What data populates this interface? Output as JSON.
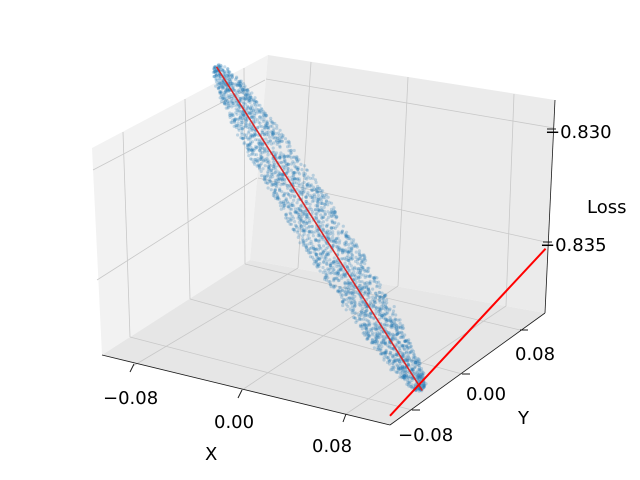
{
  "chart_data": {
    "type": "scatter",
    "title": "",
    "axes": {
      "x": {
        "label": "X",
        "ticks": [
          "−0.08",
          "0.00",
          "0.08"
        ],
        "tick_values": [
          -0.08,
          0.0,
          0.08
        ],
        "range": [
          -0.12,
          0.12
        ]
      },
      "y": {
        "label": "Y",
        "ticks": [
          "−0.08",
          "0.00",
          "0.08"
        ],
        "tick_values": [
          -0.08,
          0.0,
          0.08
        ],
        "range": [
          -0.12,
          0.12
        ]
      },
      "z": {
        "label": "Loss",
        "ticks": [
          "−0.830",
          "−0.835"
        ],
        "tick_values": [
          -0.83,
          -0.835
        ],
        "range": [
          -0.8395,
          -0.8285
        ]
      }
    },
    "grid": true,
    "series": [
      {
        "kind": "point-cloud",
        "color": "#1f77b4",
        "alpha": 0.25,
        "description_points": [
          {
            "x": -0.12,
            "y": 0.07,
            "z": -0.8289
          },
          {
            "x": -0.06,
            "y": 0.035,
            "z": -0.831
          },
          {
            "x": 0.0,
            "y": 0.0,
            "z": -0.8331
          },
          {
            "x": 0.06,
            "y": -0.035,
            "z": -0.8357
          },
          {
            "x": 0.12,
            "y": -0.07,
            "z": -0.8389
          }
        ]
      },
      {
        "kind": "line",
        "color": "#d62728",
        "points": [
          {
            "x": -0.12,
            "y": 0.07,
            "z": -0.8289
          },
          {
            "x": 0.12,
            "y": -0.07,
            "z": -0.8389
          }
        ]
      },
      {
        "kind": "line",
        "color": "#ff0000",
        "points": [
          {
            "x": 0.12,
            "y": -0.12,
            "z": -0.839
          },
          {
            "x": 0.12,
            "y": 0.12,
            "z": -0.836
          }
        ]
      }
    ]
  },
  "colors": {
    "pane_left": "#f2f2f2",
    "pane_back": "#ebebeb",
    "pane_floor": "#e6e6e6",
    "cloud": "#1f77b4",
    "main_line": "#d62728",
    "cross_line": "#ff0000"
  }
}
